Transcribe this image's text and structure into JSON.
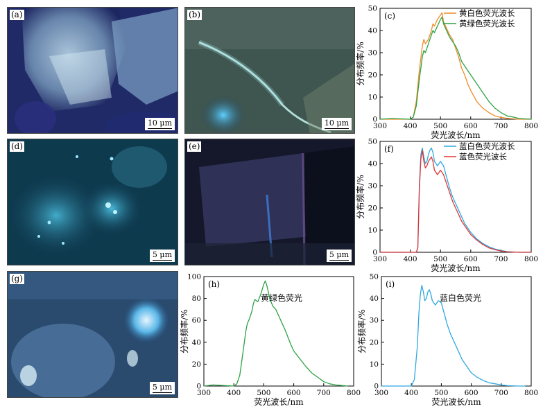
{
  "photos": [
    {
      "id": "a",
      "label": "(a)",
      "scale": "10 μm"
    },
    {
      "id": "b",
      "label": "(b)",
      "scale": "10 μm"
    },
    {
      "id": "d",
      "label": "(d)",
      "scale": "5 μm"
    },
    {
      "id": "e",
      "label": "(e)",
      "scale": "5 μm"
    },
    {
      "id": "g",
      "label": "(g)",
      "scale": "5 μm"
    }
  ],
  "chart_data": [
    {
      "id": "c",
      "type": "line",
      "label": "(c)",
      "xlabel": "荧光波长/nm",
      "ylabel": "分布频率/%",
      "xlim": [
        300,
        800
      ],
      "ylim": [
        0,
        50
      ],
      "xticks": [
        300,
        400,
        500,
        600,
        700,
        800
      ],
      "yticks": [
        0,
        10,
        20,
        30,
        40,
        50
      ],
      "legend_position": "top-right",
      "series": [
        {
          "name": "黄白色荧光波长",
          "color": "#f08a24",
          "x": [
            300,
            340,
            400,
            410,
            420,
            430,
            440,
            445,
            450,
            460,
            470,
            475,
            480,
            490,
            500,
            505,
            510,
            520,
            530,
            540,
            550,
            560,
            570,
            580,
            590,
            600,
            620,
            640,
            660,
            680,
            700,
            720,
            740,
            760,
            800
          ],
          "y": [
            0,
            0,
            0,
            1,
            8,
            22,
            33,
            36,
            34,
            36,
            40,
            43,
            42,
            45,
            47,
            48,
            44,
            41,
            38,
            36,
            32,
            28,
            23,
            20,
            16,
            13,
            8,
            5,
            3,
            1.5,
            0.8,
            0.4,
            0.2,
            0,
            0
          ]
        },
        {
          "name": "黄绿色荧光波长",
          "color": "#2ca244",
          "x": [
            300,
            340,
            400,
            410,
            420,
            430,
            440,
            445,
            450,
            460,
            470,
            475,
            480,
            490,
            500,
            505,
            510,
            520,
            530,
            540,
            550,
            560,
            570,
            580,
            590,
            600,
            620,
            640,
            660,
            680,
            700,
            720,
            740,
            760,
            800
          ],
          "y": [
            0,
            0.3,
            0,
            1,
            6,
            18,
            28,
            31,
            30,
            34,
            38,
            40,
            39,
            42,
            45,
            46,
            43,
            40,
            37,
            35,
            33,
            30,
            26,
            24,
            22,
            20,
            16,
            12,
            8,
            5,
            3,
            1.5,
            1,
            0.3,
            0
          ]
        }
      ]
    },
    {
      "id": "f",
      "type": "line",
      "label": "(f)",
      "xlabel": "荧光波长/nm",
      "ylabel": "分布频率/%",
      "xlim": [
        300,
        800
      ],
      "ylim": [
        0,
        50
      ],
      "xticks": [
        300,
        400,
        500,
        600,
        700,
        800
      ],
      "yticks": [
        0,
        10,
        20,
        30,
        40,
        50
      ],
      "legend_position": "top-right",
      "series": [
        {
          "name": "蓝白色荧光波长",
          "color": "#2ea8df",
          "x": [
            300,
            420,
            425,
            430,
            435,
            440,
            445,
            450,
            455,
            460,
            465,
            470,
            475,
            480,
            490,
            500,
            510,
            520,
            530,
            540,
            550,
            560,
            570,
            580,
            600,
            620,
            640,
            660,
            680,
            700,
            720,
            760,
            800
          ],
          "y": [
            0,
            0,
            2,
            30,
            44,
            47,
            43,
            40,
            41,
            44,
            46,
            47,
            45,
            41,
            39,
            41,
            39,
            34,
            29,
            25,
            22,
            19,
            16,
            13,
            9,
            6,
            4,
            2.5,
            1.5,
            0.8,
            0.3,
            0,
            0
          ]
        },
        {
          "name": "蓝色荧光波长",
          "color": "#e03434",
          "x": [
            300,
            420,
            425,
            430,
            435,
            440,
            445,
            450,
            455,
            460,
            465,
            470,
            475,
            480,
            490,
            500,
            510,
            520,
            530,
            540,
            550,
            560,
            570,
            580,
            600,
            620,
            640,
            660,
            680,
            700,
            720,
            760,
            800
          ],
          "y": [
            0,
            0,
            2,
            28,
            42,
            46,
            41,
            38,
            39,
            41,
            42,
            43,
            41,
            37,
            35,
            37,
            35,
            31,
            27,
            23,
            20,
            17,
            14,
            12,
            8,
            5.5,
            3.5,
            2,
            1.2,
            0.6,
            0.2,
            0,
            0
          ]
        }
      ]
    },
    {
      "id": "h",
      "type": "line",
      "label": "(h)",
      "annotation": "黄绿色荧光",
      "xlabel": "荧光波长/nm",
      "ylabel": "分布频率/%",
      "xlim": [
        300,
        800
      ],
      "ylim": [
        0,
        100
      ],
      "xticks": [
        300,
        400,
        500,
        600,
        700,
        800
      ],
      "yticks": [
        0,
        20,
        40,
        60,
        80,
        100
      ],
      "series": [
        {
          "color": "#2ca244",
          "x": [
            300,
            330,
            400,
            410,
            420,
            430,
            440,
            445,
            450,
            460,
            465,
            470,
            480,
            490,
            500,
            505,
            510,
            520,
            530,
            540,
            550,
            560,
            570,
            580,
            590,
            600,
            620,
            640,
            660,
            680,
            700,
            720,
            740,
            760,
            780
          ],
          "y": [
            0,
            1,
            0,
            2,
            10,
            30,
            50,
            57,
            60,
            68,
            75,
            79,
            77,
            84,
            93,
            96,
            92,
            80,
            73,
            70,
            64,
            58,
            52,
            45,
            38,
            32,
            25,
            18,
            12,
            8,
            4,
            2,
            1,
            0.5,
            0
          ]
        }
      ]
    },
    {
      "id": "i",
      "type": "line",
      "label": "(i)",
      "annotation": "蓝白色荧光",
      "xlabel": "荧光波长/nm",
      "ylabel": "分布频率/%",
      "xlim": [
        300,
        800
      ],
      "ylim": [
        0,
        50
      ],
      "xticks": [
        300,
        400,
        500,
        600,
        700,
        800
      ],
      "yticks": [
        0,
        10,
        20,
        30,
        40,
        50
      ],
      "series": [
        {
          "color": "#2ea8df",
          "x": [
            300,
            340,
            400,
            410,
            420,
            425,
            430,
            435,
            440,
            445,
            450,
            455,
            460,
            465,
            470,
            480,
            490,
            500,
            510,
            520,
            530,
            540,
            550,
            560,
            570,
            580,
            600,
            620,
            640,
            660,
            680,
            700,
            720,
            760,
            780
          ],
          "y": [
            0,
            0,
            0,
            3,
            18,
            33,
            42,
            46,
            43,
            39,
            40,
            43,
            44,
            42,
            39,
            37,
            39,
            38,
            33,
            28,
            24,
            21,
            18,
            15,
            12,
            10,
            6,
            4,
            2.5,
            1.5,
            1,
            0.5,
            0.2,
            0,
            0
          ]
        }
      ]
    }
  ]
}
